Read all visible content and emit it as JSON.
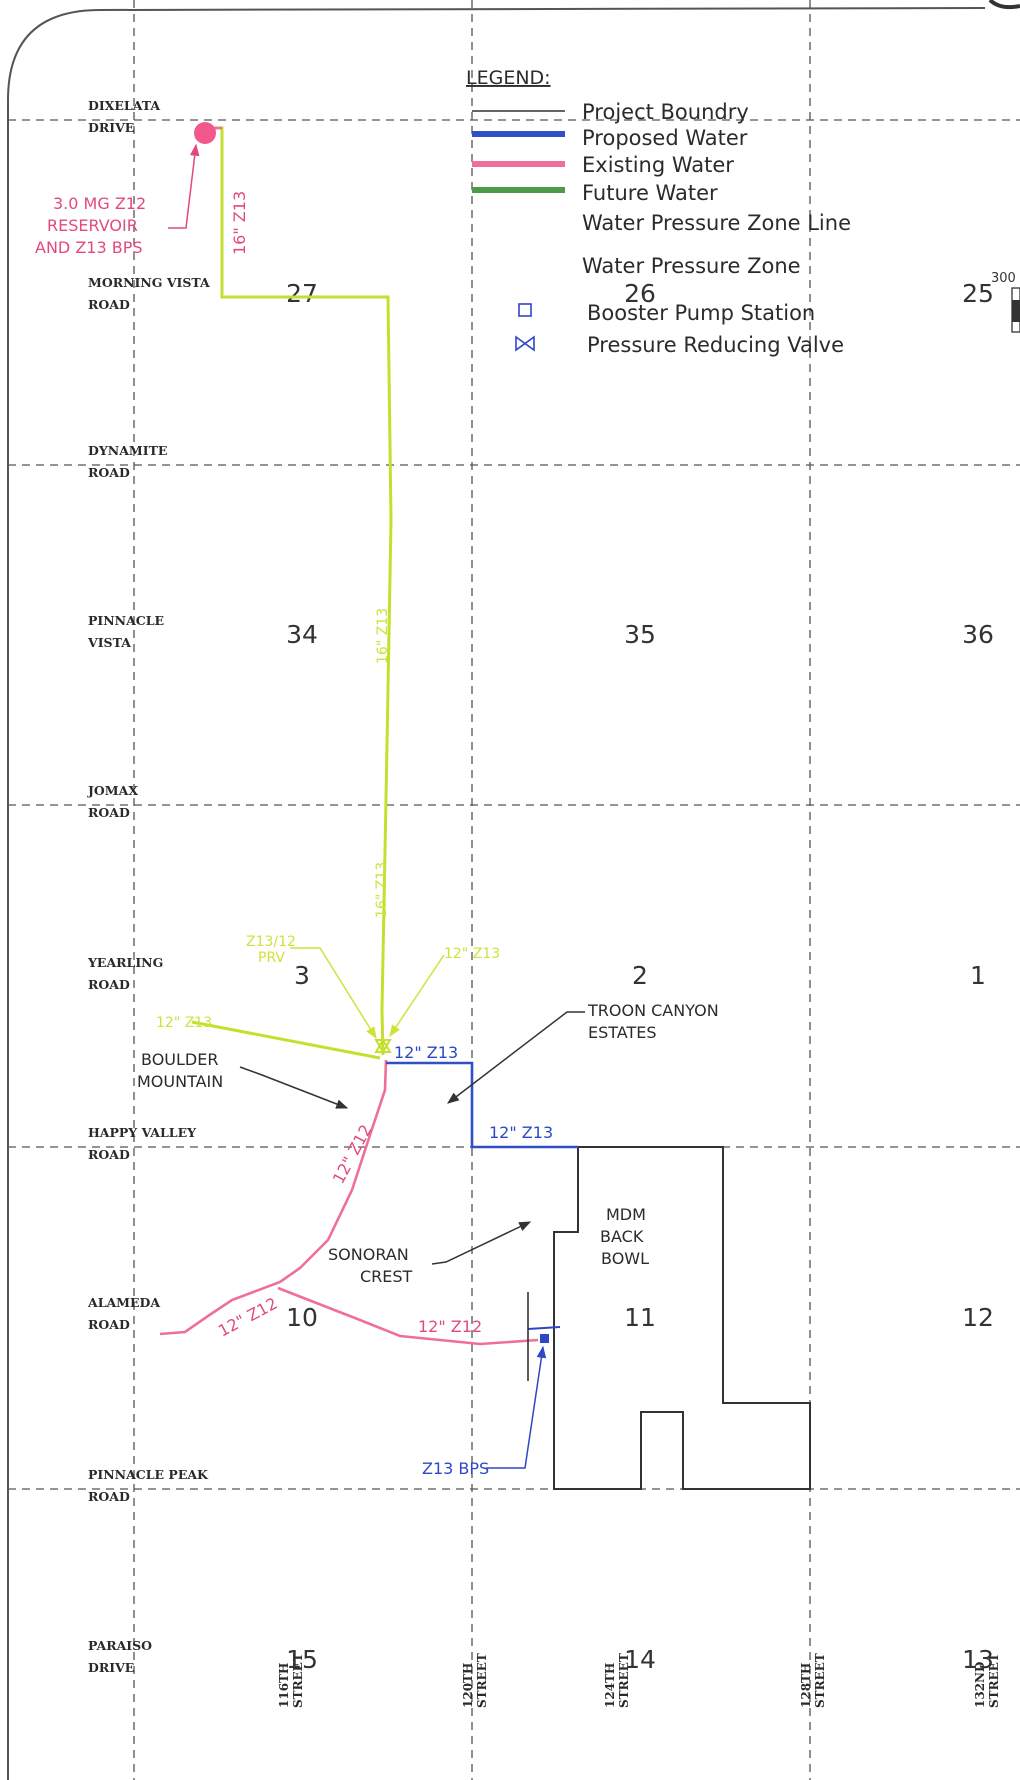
{
  "colors": {
    "project_boundary": "#333333",
    "proposed_water": "#3050c8",
    "existing_water": "#ef6f98",
    "future_water": "#4c9a4a",
    "future_water_line": "#c6df2e",
    "grid": "#555555"
  },
  "legend": {
    "title": "LEGEND:",
    "items": [
      {
        "label": "Project Boundry",
        "symbol": "thin-line"
      },
      {
        "label": "Proposed Water",
        "symbol": "blue-line"
      },
      {
        "label": "Existing Water",
        "symbol": "pink-line"
      },
      {
        "label": "Future Water",
        "symbol": "green-line"
      },
      {
        "label": "Water Pressure Zone Line",
        "symbol": "none"
      },
      {
        "label": "Water Pressure Zone",
        "symbol": "none"
      },
      {
        "label": "Booster Pump Station",
        "symbol": "square-icon"
      },
      {
        "label": "Pressure Reducing Valve",
        "symbol": "bowtie-valve-icon"
      }
    ]
  },
  "roads": [
    {
      "line1": "DIXELATA",
      "line2": "DRIVE"
    },
    {
      "line1": "MORNING VISTA",
      "line2": "ROAD"
    },
    {
      "line1": "DYNAMITE",
      "line2": "ROAD"
    },
    {
      "line1": "PINNACLE",
      "line2": "VISTA"
    },
    {
      "line1": "JOMAX",
      "line2": "ROAD"
    },
    {
      "line1": "YEARLING",
      "line2": "ROAD"
    },
    {
      "line1": "HAPPY VALLEY",
      "line2": "ROAD"
    },
    {
      "line1": "ALAMEDA",
      "line2": "ROAD"
    },
    {
      "line1": "PINNACLE PEAK",
      "line2": "ROAD"
    },
    {
      "line1": "PARAISO",
      "line2": "DRIVE"
    }
  ],
  "streets": [
    {
      "line1": "116TH",
      "line2": "STREET"
    },
    {
      "line1": "120TH",
      "line2": "STREET"
    },
    {
      "line1": "124TH",
      "line2": "STREET"
    },
    {
      "line1": "128TH",
      "line2": "STREET"
    },
    {
      "line1": "132ND",
      "line2": "STREET"
    }
  ],
  "sections": [
    "27",
    "26",
    "25",
    "34",
    "35",
    "36",
    "3",
    "2",
    "1",
    "10",
    "11",
    "12",
    "15",
    "14",
    "13"
  ],
  "scale_fragment": "300",
  "annotations": {
    "reservoir": [
      "3.0 MG Z12",
      "RESERVOIR",
      "AND Z13 BPS"
    ],
    "pipe_16_top": "16\" Z13",
    "pipe_16_mid": "16\" Z13",
    "pipe_16_low": "16\" Z13",
    "prv": [
      "Z13/12",
      "PRV"
    ],
    "pipe_12_z13_green_right": "12\" Z13",
    "pipe_12_z13_green_left": "12\" Z13",
    "pipe_12_z13_blue_top": "12\" Z13",
    "pipe_12_z13_blue_bottom": "12\" Z13",
    "pipe_12_z12_a": "12\" Z12",
    "pipe_12_z12_b": "12\" Z12",
    "pipe_12_z12_c": "12\" Z12",
    "bps": "Z13 BPS",
    "troon": [
      "TROON CANYON",
      "ESTATES"
    ],
    "boulder": [
      "BOULDER",
      "MOUNTAIN"
    ],
    "sonoran": [
      "SONORAN",
      "CREST"
    ],
    "mdm": [
      "MDM",
      "BACK",
      "BOWL"
    ]
  }
}
